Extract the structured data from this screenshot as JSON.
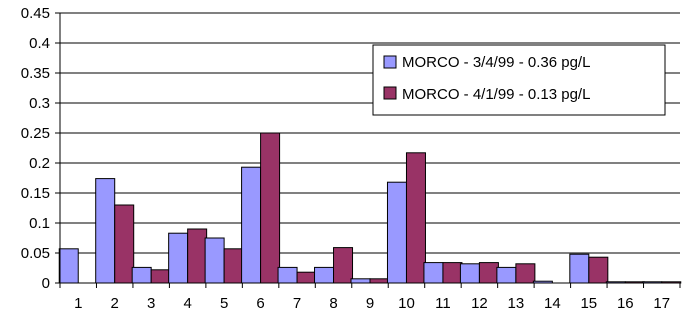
{
  "chart_data": {
    "type": "bar",
    "title": "",
    "xlabel": "",
    "ylabel": "",
    "categories": [
      "1",
      "2",
      "3",
      "4",
      "5",
      "6",
      "7",
      "8",
      "9",
      "10",
      "11",
      "12",
      "13",
      "14",
      "15",
      "16",
      "17"
    ],
    "ylim": [
      0,
      0.45
    ],
    "yticks": [
      "0",
      "0.05",
      "0.1",
      "0.15",
      "0.2",
      "0.25",
      "0.3",
      "0.35",
      "0.4",
      "0.45"
    ],
    "ytick_values": [
      0,
      0.05,
      0.1,
      0.15,
      0.2,
      0.25,
      0.3,
      0.35,
      0.4,
      0.45
    ],
    "grid": true,
    "legend_position": "right",
    "series": [
      {
        "name": "MORCO - 3/4/99 - 0.36 pg/L",
        "color": "#9999ff",
        "values": [
          0.057,
          0.174,
          0.026,
          0.083,
          0.075,
          0.193,
          0.026,
          0.026,
          0.007,
          0.168,
          0.034,
          0.032,
          0.026,
          0.003,
          0.048,
          0.002,
          0.002
        ]
      },
      {
        "name": "MORCO - 4/1/99 - 0.13 pg/L",
        "color": "#993366",
        "values": [
          0.0,
          0.13,
          0.022,
          0.09,
          0.057,
          0.25,
          0.018,
          0.059,
          0.007,
          0.217,
          0.034,
          0.034,
          0.032,
          0.0,
          0.043,
          0.002,
          0.002
        ]
      }
    ]
  }
}
